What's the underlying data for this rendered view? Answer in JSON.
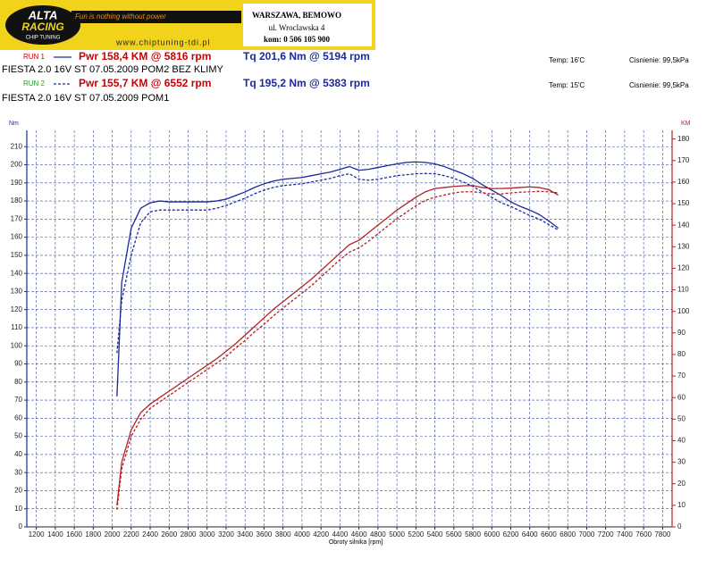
{
  "header": {
    "logo_top": "ALTA",
    "logo_mid": "RACING",
    "logo_bottom": "CHIP TUNING",
    "slogan": "Fun is nothing without power",
    "website": "www.chiptuning-tdi.pl",
    "address": [
      "WARSZAWA, BEMOWO",
      "ul. Wroclawska 4",
      "kom: 0 506 105 900"
    ]
  },
  "runs": [
    {
      "label": "RUN 1",
      "power": "Pwr 158,4 KM @ 5816 rpm",
      "torque": "Tq 201,6 Nm @ 5194 rpm",
      "temp": "Temp: 16'C",
      "pressure": "Cisnienie: 99,5kPa",
      "description": "FIESTA 2.0 16V ST  07.05.2009 POM2 BEZ KLIMY"
    },
    {
      "label": "RUN 2",
      "power": "Pwr 155,7 KM @ 6552 rpm",
      "torque": "Tq 195,2 Nm @ 5383 rpm",
      "temp": "Temp: 15'C",
      "pressure": "Cisnienie: 99,5kPa",
      "description": "FIESTA  2.0 16V ST  07.05.2009   POM1"
    }
  ],
  "chart_data": {
    "type": "line",
    "y_label": "Nm",
    "y2_label": "KM",
    "x_label": "Obroty silnika [rpm]",
    "xlim": [
      1100,
      7900
    ],
    "ylim": [
      0,
      219
    ],
    "y2lim": [
      0,
      184
    ],
    "grid": true,
    "xticks": [
      1200,
      1400,
      1600,
      1800,
      2000,
      2200,
      2400,
      2600,
      2800,
      3000,
      3200,
      3400,
      3600,
      3800,
      4000,
      4200,
      4400,
      4600,
      4800,
      5000,
      5200,
      5400,
      5600,
      5800,
      6000,
      6200,
      6400,
      6600,
      6800,
      7000,
      7200,
      7400,
      7600,
      7800
    ],
    "yticks": [
      0,
      10,
      20,
      30,
      40,
      50,
      60,
      70,
      80,
      90,
      100,
      110,
      120,
      130,
      140,
      150,
      160,
      170,
      180,
      190,
      200,
      210
    ],
    "y2ticks": [
      0,
      10,
      20,
      30,
      40,
      50,
      60,
      70,
      80,
      90,
      100,
      110,
      120,
      130,
      140,
      150,
      160,
      170,
      180
    ],
    "x": [
      2050,
      2100,
      2200,
      2300,
      2400,
      2500,
      2600,
      2700,
      2800,
      2900,
      3000,
      3100,
      3200,
      3300,
      3400,
      3500,
      3600,
      3700,
      3800,
      3900,
      4000,
      4100,
      4200,
      4300,
      4400,
      4500,
      4600,
      4700,
      4800,
      4900,
      5000,
      5100,
      5200,
      5300,
      5400,
      5500,
      5600,
      5700,
      5800,
      5900,
      6000,
      6100,
      6200,
      6300,
      6400,
      6500,
      6600,
      6700
    ],
    "series": [
      {
        "color": "#1a2a9c",
        "dash": false,
        "axis": "y",
        "values": [
          72,
          135,
          165,
          176,
          179,
          180,
          179.5,
          179.5,
          179.5,
          179.5,
          179.5,
          180,
          181,
          183,
          185,
          187.5,
          189.5,
          191,
          192,
          192.5,
          193,
          194,
          195,
          196,
          197.5,
          199,
          197,
          197.5,
          198.5,
          199.5,
          200.5,
          201.3,
          201.6,
          201.3,
          200.5,
          199,
          197,
          195,
          192.5,
          189,
          186,
          183,
          179.5,
          177,
          175,
          172.5,
          169,
          165
        ]
      },
      {
        "color": "#1a2a9c",
        "dash": true,
        "axis": "y",
        "values": [
          96,
          125,
          150,
          168,
          174,
          175,
          175,
          175,
          175,
          175,
          175,
          176,
          177.5,
          179.5,
          181.5,
          184,
          186,
          187.5,
          188.5,
          189,
          189.5,
          190.5,
          191.5,
          192.5,
          194,
          195,
          192,
          191.5,
          192,
          193,
          194,
          194.5,
          195,
          195.2,
          195,
          194,
          192.5,
          190.5,
          188,
          185,
          182,
          179,
          177,
          174.5,
          172,
          170,
          167,
          164
        ]
      },
      {
        "color": "#b22222",
        "dash": false,
        "axis": "y2",
        "values": [
          10,
          30,
          45,
          53,
          57,
          60,
          63,
          66,
          69,
          72,
          75,
          78,
          81.5,
          85,
          89,
          93,
          97,
          101,
          104.5,
          108,
          111.5,
          115,
          119,
          123,
          127,
          131,
          133,
          136.5,
          140,
          143.5,
          147,
          150,
          153,
          155.5,
          157,
          157.5,
          158,
          158.3,
          158.4,
          157.5,
          157,
          157,
          157.2,
          157.5,
          157.8,
          157.5,
          156.5,
          154
        ]
      },
      {
        "color": "#b22222",
        "dash": true,
        "axis": "y2",
        "values": [
          8,
          27,
          42,
          50,
          55,
          58,
          61,
          64,
          67,
          70,
          73,
          76,
          79,
          83,
          86.5,
          90.5,
          94,
          98,
          101.5,
          105,
          108.5,
          112,
          116,
          120,
          124,
          127.5,
          129.5,
          132.5,
          136,
          139.5,
          143,
          146,
          149,
          151.5,
          153,
          154,
          155,
          155.5,
          155.5,
          155,
          154.5,
          154.5,
          155,
          155.3,
          155.5,
          155.7,
          155.5,
          155
        ]
      }
    ]
  }
}
